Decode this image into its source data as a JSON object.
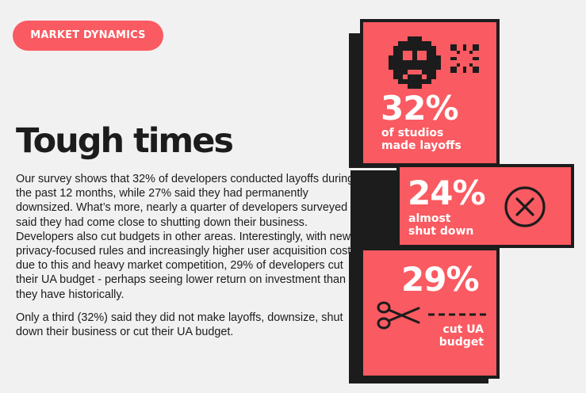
{
  "section_label": "MARKET DYNAMICS",
  "heading": "Tough times",
  "paragraphs": [
    "Our survey shows that 32% of developers conducted layoffs during the past 12 months, while 27% said they had permanently downsized. What’s more, nearly a quarter of developers surveyed said they had come close to shutting down their business. Developers also cut budgets in other areas. Interestingly, with new privacy-focused rules and increasingly higher user acquisition costs due to this and heavy market competition, 29% of developers cut their UA budget - perhaps seeing lower return on investment than they have historically.",
    "Only a third (32%) said they did not make layoffs, downsize, shut down their business or cut their UA budget."
  ],
  "stats": [
    {
      "value": "32%",
      "label_line1": "of studios",
      "label_line2": "made layoffs",
      "icon": "pixel-frown-face-icon"
    },
    {
      "value": "24%",
      "label_line1": "almost",
      "label_line2": "shut down",
      "icon": "circle-x-icon"
    },
    {
      "value": "29%",
      "label_line1": "cut UA",
      "label_line2": "budget",
      "icon": "scissors-icon"
    }
  ],
  "colors": {
    "accent": "#fa5a61",
    "dark": "#1c1c1c",
    "background": "#f2f1f1"
  }
}
